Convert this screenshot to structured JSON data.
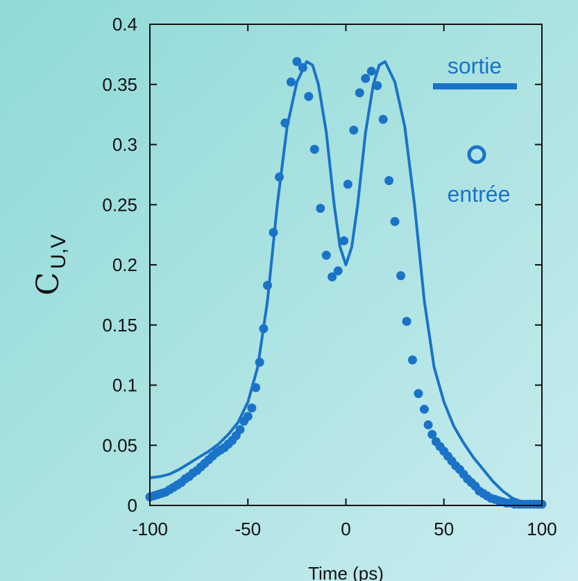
{
  "chart_data": {
    "type": "line",
    "xlabel": "Time (ps)",
    "ylabel": {
      "main": "C",
      "sub": "U,V"
    },
    "xlim": [
      -100,
      100
    ],
    "ylim": [
      0,
      0.4
    ],
    "xticks": [
      -100,
      -50,
      0,
      50,
      100
    ],
    "xtick_labels": [
      "-100",
      "-50",
      "0",
      "50",
      "100"
    ],
    "yticks": [
      0,
      0.05,
      0.1,
      0.15,
      0.2,
      0.25,
      0.3,
      0.35,
      0.4
    ],
    "ytick_labels": [
      "0",
      "0.05",
      "0.1",
      "0.15",
      "0.2",
      "0.25",
      "0.3",
      "0.35",
      "0.4"
    ],
    "grid": false,
    "legend_position": "top-right",
    "color": "#1a73c7",
    "series": [
      {
        "name": "sortie",
        "style": "line",
        "x": [
          -100,
          -95,
          -90,
          -85,
          -80,
          -75,
          -70,
          -65,
          -60,
          -55,
          -50,
          -45,
          -40,
          -35,
          -30,
          -25,
          -20,
          -17,
          -14,
          -10,
          -6,
          -3,
          0,
          3,
          6,
          10,
          14,
          17,
          20,
          25,
          30,
          35,
          40,
          45,
          50,
          55,
          60,
          65,
          70,
          75,
          80,
          85,
          90,
          95,
          100
        ],
        "y": [
          0.023,
          0.024,
          0.026,
          0.03,
          0.035,
          0.04,
          0.045,
          0.051,
          0.059,
          0.069,
          0.086,
          0.115,
          0.17,
          0.25,
          0.315,
          0.352,
          0.369,
          0.366,
          0.35,
          0.31,
          0.25,
          0.215,
          0.2,
          0.215,
          0.25,
          0.31,
          0.35,
          0.366,
          0.369,
          0.352,
          0.315,
          0.25,
          0.17,
          0.115,
          0.086,
          0.066,
          0.052,
          0.04,
          0.03,
          0.02,
          0.012,
          0.006,
          0.003,
          0.002,
          0.001
        ]
      },
      {
        "name": "entrée",
        "style": "markers",
        "x": [
          -100,
          -98,
          -96,
          -94,
          -92,
          -90,
          -88,
          -86,
          -84,
          -82,
          -80,
          -78,
          -76,
          -74,
          -72,
          -70,
          -68,
          -66,
          -64,
          -62,
          -60,
          -58,
          -56,
          -54,
          -52,
          -50,
          -48,
          -46,
          -44,
          -42,
          -40,
          -37,
          -34,
          -31,
          -28,
          -25,
          -22,
          -19,
          -16,
          -13,
          -10,
          -7,
          -4,
          -1,
          1,
          4,
          7,
          10,
          13,
          16,
          19,
          22,
          25,
          28,
          31,
          34,
          37,
          40,
          42,
          44,
          46,
          48,
          50,
          52,
          54,
          56,
          58,
          60,
          62,
          64,
          66,
          68,
          70,
          72,
          74,
          76,
          78,
          80,
          82,
          84,
          86,
          88,
          90,
          92,
          94,
          96,
          98,
          100
        ],
        "y": [
          0.007,
          0.008,
          0.009,
          0.01,
          0.011,
          0.013,
          0.015,
          0.017,
          0.019,
          0.022,
          0.024,
          0.027,
          0.029,
          0.032,
          0.035,
          0.038,
          0.041,
          0.044,
          0.046,
          0.048,
          0.051,
          0.054,
          0.058,
          0.063,
          0.07,
          0.074,
          0.081,
          0.098,
          0.119,
          0.147,
          0.183,
          0.227,
          0.273,
          0.318,
          0.352,
          0.369,
          0.364,
          0.34,
          0.296,
          0.247,
          0.208,
          0.19,
          0.195,
          0.22,
          0.267,
          0.312,
          0.343,
          0.355,
          0.361,
          0.349,
          0.321,
          0.27,
          0.236,
          0.191,
          0.153,
          0.121,
          0.093,
          0.08,
          0.067,
          0.059,
          0.053,
          0.049,
          0.045,
          0.041,
          0.037,
          0.033,
          0.03,
          0.026,
          0.022,
          0.019,
          0.016,
          0.012,
          0.01,
          0.008,
          0.006,
          0.005,
          0.004,
          0.003,
          0.002,
          0.002,
          0.001,
          0.001,
          0.001,
          0.001,
          0.001,
          0.001,
          0.001,
          0.001
        ]
      }
    ]
  }
}
